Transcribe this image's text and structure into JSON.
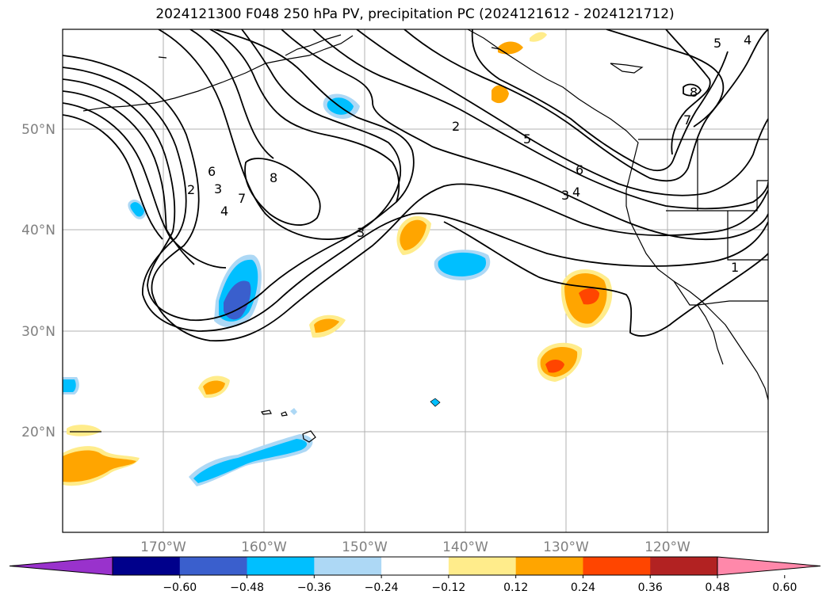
{
  "title": "2024121300 F048 250 hPa PV, precipitation PC (2024121612 - 2024121712)",
  "map": {
    "lon_ticks": [
      "170°W",
      "160°W",
      "150°W",
      "140°W",
      "130°W",
      "120°W"
    ],
    "lat_ticks": [
      "50°N",
      "40°N",
      "30°N",
      "20°N"
    ],
    "contour_labels": [
      "2",
      "3",
      "4",
      "5",
      "6",
      "7",
      "8",
      "2",
      "3",
      "4",
      "5",
      "6",
      "5",
      "4",
      "6",
      "7",
      "8",
      "1",
      "3"
    ]
  },
  "colorbar": {
    "ticks": [
      "−0.60",
      "−0.48",
      "−0.36",
      "−0.24",
      "−0.12",
      "0.12",
      "0.24",
      "0.36",
      "0.48",
      "0.60"
    ],
    "colors": [
      "#9932cc",
      "#00008b",
      "#3a5fcd",
      "#00bfff",
      "#add8f5",
      "#ffffff",
      "#ffec8b",
      "#ffa500",
      "#ff4500",
      "#b22222",
      "#ff88aa"
    ]
  }
}
